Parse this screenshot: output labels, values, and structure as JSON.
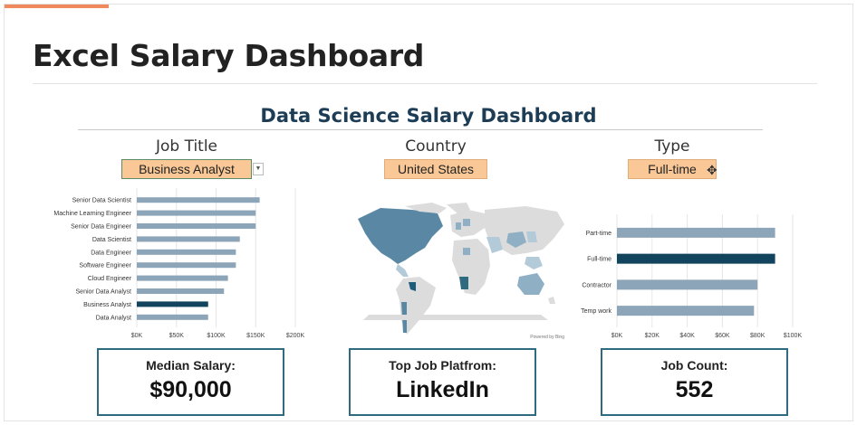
{
  "page": {
    "title": "Excel Salary Dashboard"
  },
  "dashboard": {
    "title": "Data Science Salary Dashboard",
    "filters": {
      "job_title": {
        "label": "Job Title",
        "value": "Business Analyst"
      },
      "country": {
        "label": "Country",
        "value": "United States"
      },
      "type": {
        "label": "Type",
        "value": "Full-time"
      }
    },
    "map": {
      "credit": "Powered by Bing"
    },
    "kpis": {
      "median_salary": {
        "label": "Median Salary:",
        "value": "$90,000"
      },
      "top_platform": {
        "label": "Top Job Platfrom:",
        "value": "LinkedIn"
      },
      "job_count": {
        "label": "Job Count:",
        "value": "552"
      }
    }
  },
  "chart_data": [
    {
      "type": "bar",
      "orientation": "horizontal",
      "categories": [
        "Senior Data Scientist",
        "Machine Learning Engineer",
        "Senior Data Engineer",
        "Data Scientist",
        "Data Engineer",
        "Software Engineer",
        "Cloud Engineer",
        "Senior Data Analyst",
        "Business Analyst",
        "Data Analyst"
      ],
      "values": [
        155000,
        150000,
        150000,
        130000,
        125000,
        125000,
        115000,
        110000,
        90000,
        90000
      ],
      "highlight": "Business Analyst",
      "xlim": [
        0,
        200000
      ],
      "xticks": [
        "$0K",
        "$50K",
        "$100K",
        "$150K",
        "$200K"
      ],
      "grid": true
    },
    {
      "type": "bar",
      "orientation": "horizontal",
      "categories": [
        "Part-time",
        "Full-time",
        "Contractor",
        "Temp work"
      ],
      "values": [
        90000,
        90000,
        80000,
        78000
      ],
      "highlight": "Full-time",
      "xlim": [
        0,
        100000
      ],
      "xticks": [
        "$0K",
        "$20K",
        "$40K",
        "$60K",
        "$80K",
        "$100K"
      ],
      "grid": true
    }
  ],
  "colors": {
    "bar": "#8da5b8",
    "highlight": "#12445e",
    "filter": "#f9c896",
    "kpi_border": "#2e6b80"
  }
}
